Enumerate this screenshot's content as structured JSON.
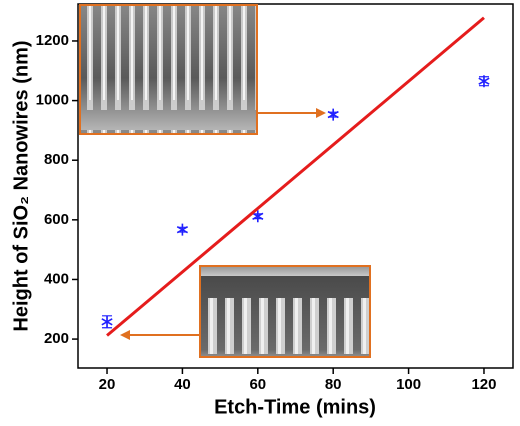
{
  "chart_data": {
    "type": "scatter",
    "xlabel": "Etch-Time (mins)",
    "ylabel": "Height of SiO₂ Nanowires (nm)",
    "x": [
      20,
      40,
      60,
      80,
      120
    ],
    "series": [
      {
        "values": [
          258,
          567,
          612,
          953,
          1065
        ],
        "errors": [
          20,
          8,
          8,
          8,
          15
        ],
        "color": "#2020ff"
      },
      {
        "x": [
          20,
          120
        ],
        "values": [
          212,
          1278
        ],
        "color": "#e51c1c",
        "style": "line"
      }
    ],
    "xlim": [
      12.3,
      127.7
    ],
    "xticks": [
      20,
      40,
      60,
      80,
      100,
      120
    ],
    "ylim": [
      103,
      1324
    ],
    "yticks": [
      200,
      400,
      600,
      800,
      1000,
      1200
    ]
  }
}
